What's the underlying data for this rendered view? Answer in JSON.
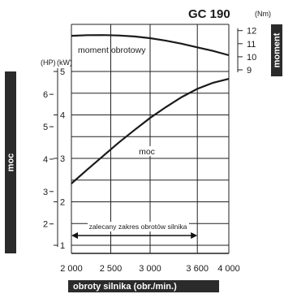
{
  "chart_data": {
    "type": "line",
    "title": "GC 190",
    "xlabel": "obroty silnika (obr./min.)",
    "left_label": "moc",
    "right_label": "moment",
    "units": {
      "hp": "(HP)",
      "kw": "(kW)",
      "nm": "(Nm)"
    },
    "x_ticks": [
      "2 000",
      "2 500",
      "3 000",
      "3 600",
      "4 000"
    ],
    "x_tick_values": [
      2000,
      2500,
      3000,
      3600,
      4000
    ],
    "xlim": [
      2000,
      4000
    ],
    "kw_ticks": [
      "1",
      "2",
      "3",
      "4",
      "5"
    ],
    "kw_tick_values": [
      1,
      2,
      3,
      4,
      5
    ],
    "hp_ticks": [
      "2",
      "3",
      "4",
      "5",
      "6"
    ],
    "hp_tick_values": [
      2,
      3,
      4,
      5,
      6
    ],
    "nm_ticks": [
      "9",
      "10",
      "11",
      "12"
    ],
    "nm_tick_values": [
      9,
      10,
      11,
      12
    ],
    "grid": true,
    "series": [
      {
        "name": "moment obrotowy",
        "axis": "nm",
        "x": [
          2000,
          2200,
          2400,
          2600,
          2800,
          3000,
          3200,
          3400,
          3600,
          3800,
          4000
        ],
        "y": [
          11.6,
          11.65,
          11.66,
          11.63,
          11.55,
          11.42,
          11.23,
          11.0,
          10.72,
          10.45,
          10.12
        ]
      },
      {
        "name": "moc",
        "axis": "kw",
        "x": [
          2000,
          2200,
          2400,
          2600,
          2800,
          3000,
          3200,
          3400,
          3600,
          3800,
          4000
        ],
        "y": [
          2.42,
          2.74,
          3.05,
          3.36,
          3.65,
          3.93,
          4.18,
          4.41,
          4.6,
          4.74,
          4.83
        ]
      }
    ],
    "annotation": {
      "text": "zalecany zakres obrotów silnika",
      "x_start": 2000,
      "x_end": 3600
    }
  }
}
